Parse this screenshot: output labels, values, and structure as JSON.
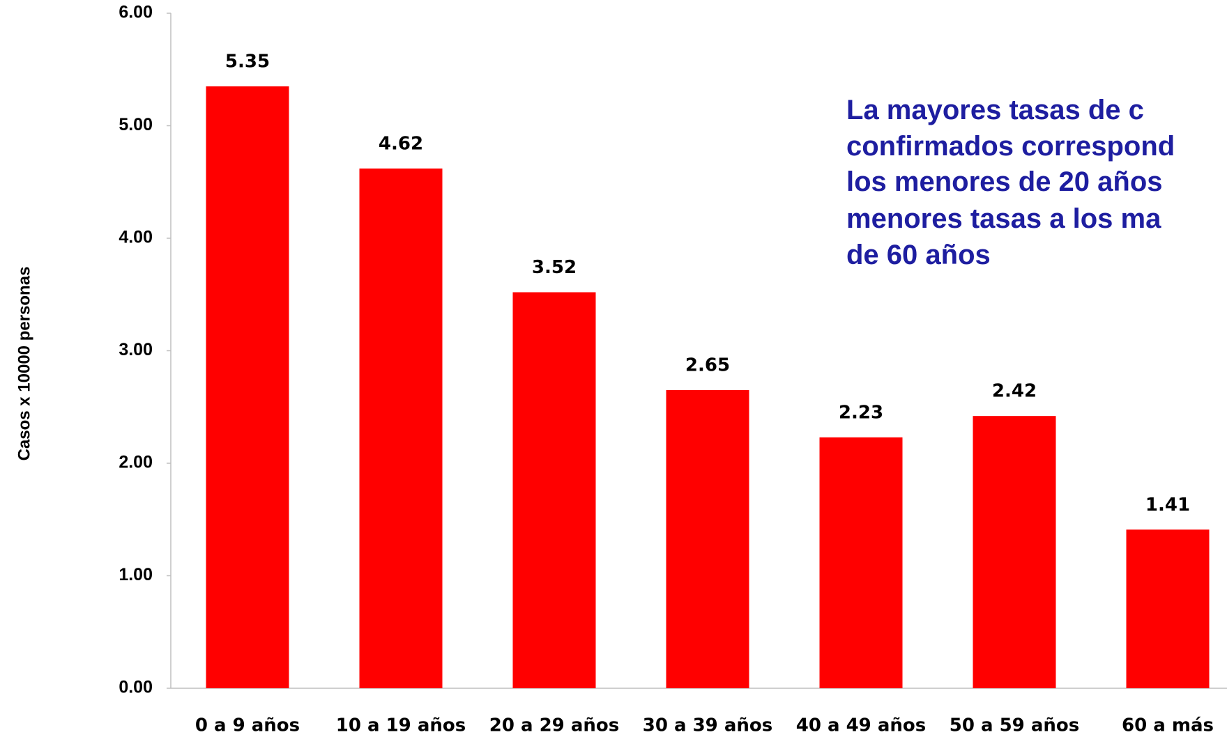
{
  "chart_data": {
    "type": "bar",
    "y_label": "Casos x 10000 personas",
    "annotation": [
      "La mayores tasas de c",
      "confirmados correspond",
      "los menores de 20 años",
      "menores tasas a los ma",
      "de 60 años"
    ],
    "categories": [
      "0 a 9 años",
      "10 a 19 años",
      "20 a 29 años",
      "30 a 39 años",
      "40 a 49 años",
      "50 a 59 años",
      "60 a más"
    ],
    "values": [
      5.35,
      4.62,
      3.52,
      2.65,
      2.23,
      2.42,
      1.41
    ],
    "color": "#ff0000",
    "ylim": [
      0,
      6
    ],
    "yticks": [
      {
        "value": 0,
        "label": "0.00"
      },
      {
        "value": 1,
        "label": "1.00"
      },
      {
        "value": 2,
        "label": "2.00"
      },
      {
        "value": 3,
        "label": "3.00"
      },
      {
        "value": 4,
        "label": "4.00"
      },
      {
        "value": 5,
        "label": "5.00"
      },
      {
        "value": 6,
        "label": "6.00"
      }
    ]
  }
}
